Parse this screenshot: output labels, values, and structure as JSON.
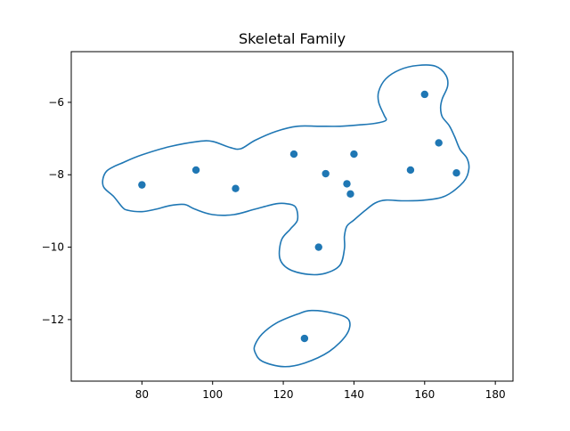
{
  "chart_data": {
    "type": "scatter",
    "title": "Skeletal Family",
    "xlabel": "",
    "ylabel": "",
    "xlim": [
      60,
      185
    ],
    "ylim": [
      -13.7,
      -4.6
    ],
    "x_ticks": [
      80,
      100,
      120,
      140,
      160,
      180
    ],
    "y_ticks": [
      -6,
      -8,
      -10,
      -12
    ],
    "grid": false,
    "colors": {
      "series": "#1f77b4",
      "axes": "#000000"
    },
    "points": [
      {
        "x": 80.0,
        "y": -8.28
      },
      {
        "x": 95.3,
        "y": -7.87
      },
      {
        "x": 106.5,
        "y": -8.38
      },
      {
        "x": 123.0,
        "y": -7.43
      },
      {
        "x": 132.0,
        "y": -7.97
      },
      {
        "x": 140.0,
        "y": -7.43
      },
      {
        "x": 138.0,
        "y": -8.25
      },
      {
        "x": 139.0,
        "y": -8.53
      },
      {
        "x": 130.0,
        "y": -10.0
      },
      {
        "x": 156.0,
        "y": -7.87
      },
      {
        "x": 160.0,
        "y": -5.78
      },
      {
        "x": 164.0,
        "y": -7.12
      },
      {
        "x": 169.0,
        "y": -7.95
      },
      {
        "x": 126.0,
        "y": -12.52
      }
    ],
    "contours": [
      [
        [
          74.5,
          -8.9
        ],
        [
          72,
          -8.6
        ],
        [
          69,
          -8.3
        ],
        [
          70,
          -7.9
        ],
        [
          75,
          -7.65
        ],
        [
          80,
          -7.45
        ],
        [
          88,
          -7.22
        ],
        [
          96,
          -7.08
        ],
        [
          100,
          -7.08
        ],
        [
          105,
          -7.25
        ],
        [
          108,
          -7.28
        ],
        [
          112,
          -7.05
        ],
        [
          118,
          -6.8
        ],
        [
          124,
          -6.66
        ],
        [
          130,
          -6.66
        ],
        [
          136,
          -6.66
        ],
        [
          142,
          -6.62
        ],
        [
          146,
          -6.58
        ],
        [
          149,
          -6.5
        ],
        [
          148.5,
          -6.35
        ],
        [
          147,
          -6.0
        ],
        [
          147,
          -5.7
        ],
        [
          149,
          -5.35
        ],
        [
          153,
          -5.1
        ],
        [
          158,
          -4.98
        ],
        [
          163,
          -5.0
        ],
        [
          166,
          -5.25
        ],
        [
          166.5,
          -5.55
        ],
        [
          165,
          -5.9
        ],
        [
          164.5,
          -6.15
        ],
        [
          165,
          -6.4
        ],
        [
          167,
          -6.65
        ],
        [
          168.5,
          -6.95
        ],
        [
          170,
          -7.3
        ],
        [
          172,
          -7.55
        ],
        [
          172.5,
          -7.85
        ],
        [
          171,
          -8.2
        ],
        [
          166,
          -8.58
        ],
        [
          160,
          -8.7
        ],
        [
          154,
          -8.72
        ],
        [
          149,
          -8.7
        ],
        [
          146,
          -8.78
        ],
        [
          143,
          -9.0
        ],
        [
          140,
          -9.25
        ],
        [
          138,
          -9.42
        ],
        [
          137.3,
          -9.7
        ],
        [
          137.3,
          -10.05
        ],
        [
          136,
          -10.5
        ],
        [
          132,
          -10.72
        ],
        [
          127,
          -10.75
        ],
        [
          121.5,
          -10.6
        ],
        [
          119,
          -10.3
        ],
        [
          119.5,
          -9.8
        ],
        [
          122,
          -9.5
        ],
        [
          124,
          -9.25
        ],
        [
          123.5,
          -8.9
        ],
        [
          121,
          -8.8
        ],
        [
          118,
          -8.8
        ],
        [
          112,
          -8.95
        ],
        [
          106,
          -9.1
        ],
        [
          100,
          -9.1
        ],
        [
          95,
          -8.95
        ],
        [
          92,
          -8.82
        ],
        [
          88,
          -8.85
        ],
        [
          84,
          -8.95
        ],
        [
          80,
          -9.02
        ],
        [
          76,
          -8.98
        ],
        [
          74.5,
          -8.9
        ]
      ],
      [
        [
          112,
          -12.7
        ],
        [
          114,
          -12.4
        ],
        [
          118,
          -12.1
        ],
        [
          124,
          -11.85
        ],
        [
          128,
          -11.75
        ],
        [
          134,
          -11.82
        ],
        [
          138.5,
          -12.0
        ],
        [
          138,
          -12.4
        ],
        [
          133,
          -12.88
        ],
        [
          126,
          -13.2
        ],
        [
          120,
          -13.3
        ],
        [
          114,
          -13.15
        ],
        [
          112,
          -12.9
        ],
        [
          112,
          -12.7
        ]
      ]
    ]
  }
}
